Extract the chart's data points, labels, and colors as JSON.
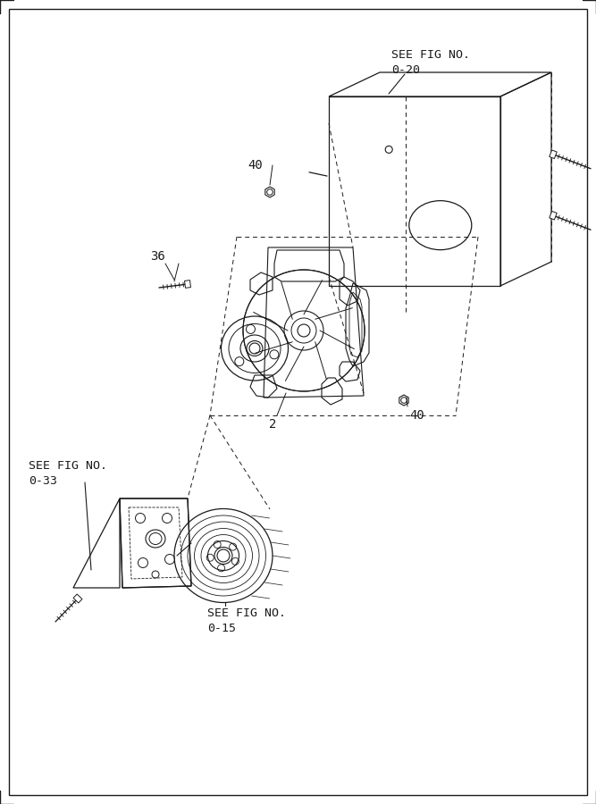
{
  "bg_color": "#ffffff",
  "line_color": "#1a1a1a",
  "fig_width": 6.67,
  "fig_height": 9.0,
  "labels": {
    "see_fig_no_020_line1": "SEE FIG NO.",
    "see_fig_no_020_line2": "0-20",
    "see_fig_no_033_line1": "SEE FIG NO.",
    "see_fig_no_033_line2": "0-33",
    "see_fig_no_015_line1": "SEE FIG NO.",
    "see_fig_no_015_line2": "0-15",
    "part_40_top": "40",
    "part_36": "36",
    "part_2": "2",
    "part_40_bot": "40"
  }
}
